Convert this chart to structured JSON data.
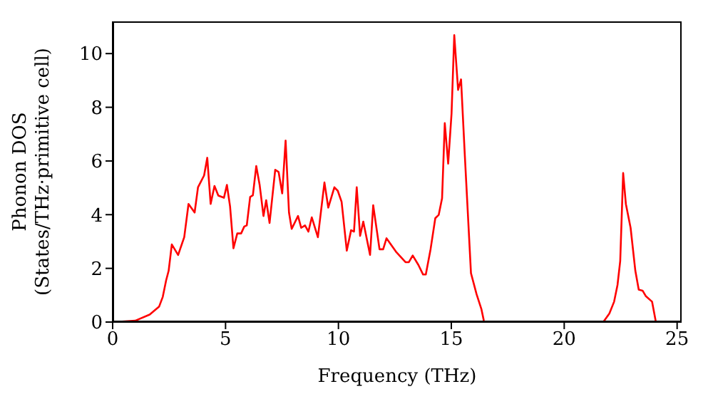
{
  "chart_data": {
    "type": "line",
    "xlabel": "Frequency (THz)",
    "ylabel": "Phonon DOS\n(States/THz·primitive cell)",
    "x": [
      0,
      0.06,
      1.0,
      1.64,
      2.06,
      2.22,
      2.37,
      2.48,
      2.62,
      2.9,
      3.17,
      3.36,
      3.63,
      3.78,
      4.05,
      4.19,
      4.34,
      4.51,
      4.68,
      4.93,
      5.06,
      5.2,
      5.35,
      5.52,
      5.69,
      5.83,
      5.94,
      6.09,
      6.21,
      6.36,
      6.51,
      6.68,
      6.8,
      6.95,
      7.2,
      7.35,
      7.51,
      7.66,
      7.81,
      7.93,
      8.21,
      8.35,
      8.52,
      8.67,
      8.82,
      9.09,
      9.38,
      9.55,
      9.82,
      9.97,
      10.14,
      10.37,
      10.56,
      10.69,
      10.81,
      10.96,
      11.1,
      11.4,
      11.54,
      11.82,
      11.98,
      12.13,
      12.55,
      12.97,
      13.12,
      13.29,
      13.54,
      13.75,
      13.87,
      14.08,
      14.29,
      14.44,
      14.59,
      14.71,
      14.86,
      15.01,
      15.13,
      15.3,
      15.43,
      15.6,
      15.87,
      16.12,
      16.33,
      16.44,
      16.48,
      21.73,
      22.0,
      22.21,
      22.36,
      22.48,
      22.61,
      22.73,
      22.94,
      23.15,
      23.3,
      23.47,
      23.61,
      23.89,
      24.06,
      25.05
    ],
    "series": [
      {
        "color": "#ff0000",
        "values": [
          0,
          0,
          0.05,
          0.28,
          0.58,
          0.94,
          1.56,
          1.91,
          2.89,
          2.5,
          3.16,
          4.4,
          4.08,
          5.02,
          5.46,
          6.12,
          4.4,
          5.07,
          4.71,
          4.63,
          5.11,
          4.31,
          2.75,
          3.3,
          3.3,
          3.56,
          3.6,
          4.66,
          4.72,
          5.81,
          5.11,
          3.95,
          4.54,
          3.69,
          5.67,
          5.59,
          4.79,
          6.76,
          4.08,
          3.47,
          3.95,
          3.51,
          3.6,
          3.37,
          3.9,
          3.16,
          5.2,
          4.26,
          5.02,
          4.89,
          4.48,
          2.66,
          3.42,
          3.37,
          5.02,
          3.21,
          3.74,
          2.5,
          4.35,
          2.71,
          2.71,
          3.12,
          2.62,
          2.23,
          2.23,
          2.48,
          2.13,
          1.77,
          1.77,
          2.71,
          3.87,
          3.99,
          4.61,
          7.41,
          5.9,
          7.77,
          10.69,
          8.65,
          9.04,
          6.17,
          1.82,
          1.03,
          0.49,
          0.05,
          0,
          0,
          0.32,
          0.76,
          1.38,
          2.27,
          5.55,
          4.4,
          3.51,
          1.91,
          1.21,
          1.17,
          0.97,
          0.76,
          0,
          0
        ]
      }
    ],
    "xlim": [
      0,
      25.2
    ],
    "xticks": [
      0,
      5,
      10,
      15,
      20,
      25
    ],
    "ylim": [
      0,
      11.2
    ],
    "yticks": [
      0,
      2,
      4,
      6,
      8,
      10
    ],
    "grid": false,
    "legend": false,
    "marker": "none",
    "line_style": "solid"
  }
}
